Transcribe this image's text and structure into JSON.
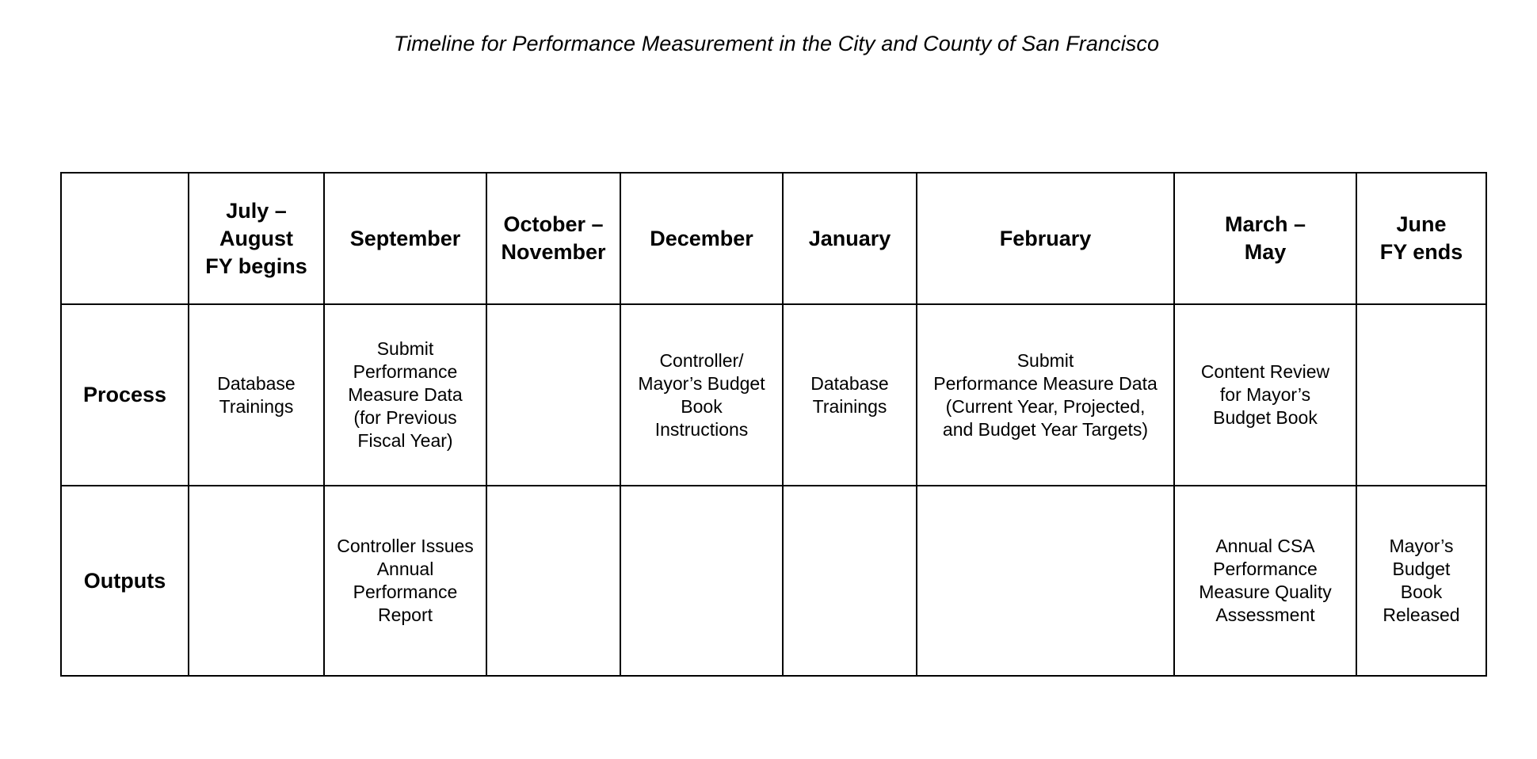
{
  "title": "Timeline for Performance Measurement in the City and County of San Francisco",
  "table": {
    "corner": "",
    "columns": [
      "July –\nAugust\nFY begins",
      "September",
      "October –\nNovember",
      "December",
      "January",
      "February",
      "March –\nMay",
      "June\nFY ends"
    ],
    "rows": [
      {
        "label": "Process",
        "cells": [
          "Database\nTrainings",
          "Submit\nPerformance\nMeasure Data\n(for Previous\nFiscal Year)",
          "",
          "Controller/\nMayor’s Budget\nBook\nInstructions",
          "Database\nTrainings",
          "Submit\nPerformance Measure Data\n(Current Year, Projected,\nand Budget Year Targets)",
          "Content Review\nfor Mayor’s\nBudget Book",
          ""
        ]
      },
      {
        "label": "Outputs",
        "cells": [
          "",
          "Controller Issues\nAnnual\nPerformance\nReport",
          "",
          "",
          "",
          "",
          "Annual CSA\nPerformance\nMeasure Quality\nAssessment",
          "Mayor’s\nBudget\nBook\nReleased"
        ]
      }
    ]
  }
}
